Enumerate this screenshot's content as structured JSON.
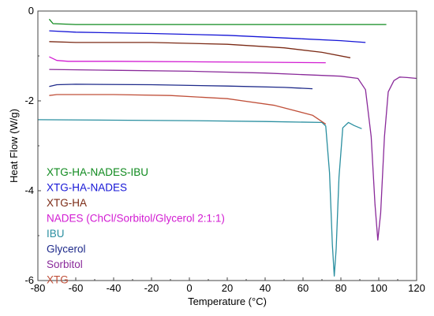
{
  "chart_data": {
    "type": "line",
    "title": "",
    "xlabel": "Temperature (°C)",
    "ylabel": "Heat Flow (W/g)",
    "xlim": [
      -80,
      120
    ],
    "ylim": [
      -6,
      0
    ],
    "x_ticks": [
      "-80",
      "-60",
      "-40",
      "-20",
      "0",
      "20",
      "40",
      "60",
      "80",
      "100",
      "120"
    ],
    "y_ticks": [
      "0",
      "-2",
      "-4",
      "-6"
    ],
    "grid": false,
    "legend_position": "bottom-left",
    "series": [
      {
        "name": "XTG-HA-NADES-IBU",
        "color": "#0f8a1e",
        "points": [
          [
            -74,
            -0.18
          ],
          [
            -72,
            -0.28
          ],
          [
            -60,
            -0.3
          ],
          [
            -20,
            -0.3
          ],
          [
            20,
            -0.3
          ],
          [
            60,
            -0.3
          ],
          [
            90,
            -0.3
          ],
          [
            104,
            -0.3
          ]
        ]
      },
      {
        "name": "XTG-HA-NADES",
        "color": "#1515d6",
        "points": [
          [
            -74,
            -0.44
          ],
          [
            -60,
            -0.47
          ],
          [
            -20,
            -0.5
          ],
          [
            20,
            -0.54
          ],
          [
            60,
            -0.62
          ],
          [
            80,
            -0.66
          ],
          [
            93,
            -0.7
          ]
        ]
      },
      {
        "name": "XTG-HA",
        "color": "#7b2a15",
        "points": [
          [
            -74,
            -0.68
          ],
          [
            -60,
            -0.7
          ],
          [
            -20,
            -0.7
          ],
          [
            20,
            -0.74
          ],
          [
            50,
            -0.82
          ],
          [
            70,
            -0.92
          ],
          [
            85,
            -1.04
          ]
        ]
      },
      {
        "name": "NADES (ChCl/Sorbitol/Glycerol 2:1:1)",
        "color": "#d21bd2",
        "points": [
          [
            -74,
            -1.02
          ],
          [
            -70,
            -1.1
          ],
          [
            -64,
            -1.12
          ],
          [
            -40,
            -1.12
          ],
          [
            0,
            -1.13
          ],
          [
            40,
            -1.14
          ],
          [
            72,
            -1.15
          ]
        ]
      },
      {
        "name": "IBU",
        "color": "#2a8fa0",
        "points": [
          [
            -80,
            -2.42
          ],
          [
            -40,
            -2.43
          ],
          [
            0,
            -2.44
          ],
          [
            40,
            -2.46
          ],
          [
            70,
            -2.48
          ],
          [
            72,
            -2.56
          ],
          [
            74,
            -3.6
          ],
          [
            75.5,
            -5.2
          ],
          [
            76.5,
            -5.9
          ],
          [
            77.5,
            -5.3
          ],
          [
            79,
            -3.7
          ],
          [
            81,
            -2.6
          ],
          [
            84,
            -2.48
          ],
          [
            87,
            -2.55
          ],
          [
            91,
            -2.62
          ]
        ]
      },
      {
        "name": "Glycerol",
        "color": "#1e2a8a",
        "points": [
          [
            -74,
            -1.68
          ],
          [
            -70,
            -1.64
          ],
          [
            -60,
            -1.63
          ],
          [
            -20,
            -1.64
          ],
          [
            20,
            -1.67
          ],
          [
            50,
            -1.7
          ],
          [
            65,
            -1.73
          ]
        ]
      },
      {
        "name": "Sorbitol",
        "color": "#8a2a9a",
        "points": [
          [
            -74,
            -1.3
          ],
          [
            -40,
            -1.32
          ],
          [
            0,
            -1.34
          ],
          [
            40,
            -1.38
          ],
          [
            80,
            -1.45
          ],
          [
            89,
            -1.5
          ],
          [
            93,
            -1.75
          ],
          [
            96,
            -2.8
          ],
          [
            98,
            -4.3
          ],
          [
            99.5,
            -5.1
          ],
          [
            101,
            -4.5
          ],
          [
            103,
            -2.8
          ],
          [
            105,
            -1.8
          ],
          [
            108,
            -1.55
          ],
          [
            111,
            -1.47
          ],
          [
            115,
            -1.48
          ],
          [
            120,
            -1.5
          ]
        ]
      },
      {
        "name": "XTG",
        "color": "#c0503a",
        "points": [
          [
            -74,
            -1.88
          ],
          [
            -70,
            -1.86
          ],
          [
            -40,
            -1.86
          ],
          [
            -10,
            -1.88
          ],
          [
            20,
            -1.95
          ],
          [
            45,
            -2.1
          ],
          [
            65,
            -2.32
          ],
          [
            72,
            -2.52
          ]
        ]
      }
    ]
  }
}
